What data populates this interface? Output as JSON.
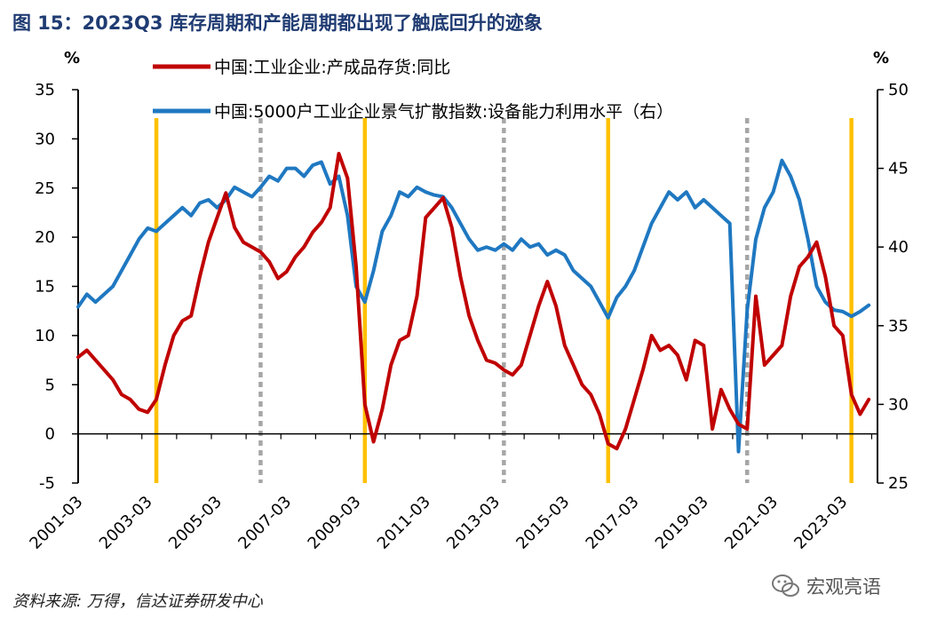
{
  "figure_title": "图 15：2023Q3 库存周期和产能周期都出现了触底回升的迹象",
  "source": "资料来源: 万得，信达证券研发中心",
  "watermark": "宏观亮语",
  "chart_data": {
    "type": "line",
    "left_unit": "%",
    "right_unit": "%",
    "ylim_left": [
      -5,
      35
    ],
    "yticks_left": [
      -5,
      0,
      5,
      10,
      15,
      20,
      25,
      30,
      35
    ],
    "ylim_right": [
      25,
      50
    ],
    "yticks_right": [
      25,
      30,
      35,
      40,
      45,
      50
    ],
    "x_range": [
      "2001-03",
      "2024-03"
    ],
    "x_tick_labels": [
      "2001-03",
      "2003-03",
      "2005-03",
      "2007-03",
      "2009-03",
      "2011-03",
      "2013-03",
      "2015-03",
      "2017-03",
      "2019-03",
      "2021-03",
      "2023-03"
    ],
    "legend_position": "top",
    "colors": {
      "red_series": "#c00000",
      "blue_series": "#1f78c1",
      "orange_marker": "#ffc000",
      "gray_marker": "#a6a6a6"
    },
    "vertical_markers": {
      "orange_solid": [
        "2003-06",
        "2009-06",
        "2016-06",
        "2023-06"
      ],
      "gray_dashed": [
        "2006-06",
        "2013-06",
        "2020-06"
      ]
    },
    "series": [
      {
        "name": "中国:工业企业:产成品存货:同比",
        "axis": "left",
        "points": [
          [
            "2001-03",
            7.8
          ],
          [
            "2001-06",
            8.5
          ],
          [
            "2001-09",
            7.5
          ],
          [
            "2001-12",
            6.5
          ],
          [
            "2002-03",
            5.5
          ],
          [
            "2002-06",
            4.0
          ],
          [
            "2002-09",
            3.5
          ],
          [
            "2002-12",
            2.5
          ],
          [
            "2003-03",
            2.2
          ],
          [
            "2003-06",
            3.5
          ],
          [
            "2003-09",
            7.0
          ],
          [
            "2003-12",
            10.0
          ],
          [
            "2004-03",
            11.5
          ],
          [
            "2004-06",
            12.0
          ],
          [
            "2004-09",
            16.0
          ],
          [
            "2004-12",
            19.5
          ],
          [
            "2005-03",
            22.0
          ],
          [
            "2005-06",
            24.5
          ],
          [
            "2005-09",
            21.0
          ],
          [
            "2005-12",
            19.5
          ],
          [
            "2006-03",
            19.0
          ],
          [
            "2006-06",
            18.5
          ],
          [
            "2006-09",
            17.5
          ],
          [
            "2006-12",
            15.8
          ],
          [
            "2007-03",
            16.5
          ],
          [
            "2007-06",
            18.0
          ],
          [
            "2007-09",
            19.0
          ],
          [
            "2007-12",
            20.5
          ],
          [
            "2008-03",
            21.5
          ],
          [
            "2008-06",
            23.0
          ],
          [
            "2008-09",
            28.5
          ],
          [
            "2008-12",
            26.0
          ],
          [
            "2009-03",
            17.0
          ],
          [
            "2009-06",
            3.0
          ],
          [
            "2009-09",
            -0.8
          ],
          [
            "2009-12",
            2.5
          ],
          [
            "2010-03",
            7.0
          ],
          [
            "2010-06",
            9.5
          ],
          [
            "2010-09",
            10.0
          ],
          [
            "2010-12",
            14.0
          ],
          [
            "2011-03",
            22.0
          ],
          [
            "2011-06",
            23.0
          ],
          [
            "2011-09",
            24.0
          ],
          [
            "2011-12",
            21.0
          ],
          [
            "2012-03",
            16.0
          ],
          [
            "2012-06",
            12.0
          ],
          [
            "2012-09",
            9.5
          ],
          [
            "2012-12",
            7.5
          ],
          [
            "2013-03",
            7.2
          ],
          [
            "2013-06",
            6.5
          ],
          [
            "2013-09",
            6.0
          ],
          [
            "2013-12",
            7.0
          ],
          [
            "2014-03",
            10.0
          ],
          [
            "2014-06",
            13.0
          ],
          [
            "2014-09",
            15.5
          ],
          [
            "2014-12",
            13.0
          ],
          [
            "2015-03",
            9.0
          ],
          [
            "2015-06",
            7.0
          ],
          [
            "2015-09",
            5.0
          ],
          [
            "2015-12",
            4.0
          ],
          [
            "2016-03",
            2.0
          ],
          [
            "2016-06",
            -1.0
          ],
          [
            "2016-09",
            -1.5
          ],
          [
            "2016-12",
            0.5
          ],
          [
            "2017-03",
            3.5
          ],
          [
            "2017-06",
            6.5
          ],
          [
            "2017-09",
            10.0
          ],
          [
            "2017-12",
            8.5
          ],
          [
            "2018-03",
            9.0
          ],
          [
            "2018-06",
            8.0
          ],
          [
            "2018-09",
            5.5
          ],
          [
            "2018-12",
            9.5
          ],
          [
            "2019-03",
            9.0
          ],
          [
            "2019-06",
            0.5
          ],
          [
            "2019-09",
            4.5
          ],
          [
            "2019-12",
            2.5
          ],
          [
            "2020-03",
            1.0
          ],
          [
            "2020-06",
            0.5
          ],
          [
            "2020-09",
            14.0
          ],
          [
            "2020-12",
            7.0
          ],
          [
            "2021-03",
            8.0
          ],
          [
            "2021-06",
            9.0
          ],
          [
            "2021-09",
            14.0
          ],
          [
            "2021-12",
            17.0
          ],
          [
            "2022-03",
            18.0
          ],
          [
            "2022-06",
            19.5
          ],
          [
            "2022-09",
            16.0
          ],
          [
            "2022-12",
            11.0
          ],
          [
            "2023-03",
            10.0
          ],
          [
            "2023-06",
            4.0
          ],
          [
            "2023-09",
            2.0
          ],
          [
            "2023-12",
            3.5
          ]
        ]
      },
      {
        "name": "中国:5000户工业企业景气扩散指数:设备能力利用水平（右）",
        "axis": "right",
        "points": [
          [
            "2001-03",
            36.2
          ],
          [
            "2001-06",
            37.0
          ],
          [
            "2001-09",
            36.5
          ],
          [
            "2001-12",
            37.0
          ],
          [
            "2002-03",
            37.5
          ],
          [
            "2002-06",
            38.5
          ],
          [
            "2002-09",
            39.5
          ],
          [
            "2002-12",
            40.5
          ],
          [
            "2003-03",
            41.2
          ],
          [
            "2003-06",
            41.0
          ],
          [
            "2003-09",
            41.5
          ],
          [
            "2003-12",
            42.0
          ],
          [
            "2004-03",
            42.5
          ],
          [
            "2004-06",
            42.0
          ],
          [
            "2004-09",
            42.8
          ],
          [
            "2004-12",
            43.0
          ],
          [
            "2005-03",
            42.5
          ],
          [
            "2005-06",
            43.0
          ],
          [
            "2005-09",
            43.8
          ],
          [
            "2005-12",
            43.5
          ],
          [
            "2006-03",
            43.2
          ],
          [
            "2006-06",
            43.8
          ],
          [
            "2006-09",
            44.5
          ],
          [
            "2006-12",
            44.2
          ],
          [
            "2007-03",
            45.0
          ],
          [
            "2007-06",
            45.0
          ],
          [
            "2007-09",
            44.5
          ],
          [
            "2007-12",
            45.2
          ],
          [
            "2008-03",
            45.4
          ],
          [
            "2008-06",
            44.0
          ],
          [
            "2008-09",
            44.5
          ],
          [
            "2008-12",
            42.0
          ],
          [
            "2009-03",
            37.5
          ],
          [
            "2009-06",
            36.5
          ],
          [
            "2009-09",
            38.5
          ],
          [
            "2009-12",
            41.0
          ],
          [
            "2010-03",
            42.0
          ],
          [
            "2010-06",
            43.5
          ],
          [
            "2010-09",
            43.2
          ],
          [
            "2010-12",
            43.8
          ],
          [
            "2011-03",
            43.5
          ],
          [
            "2011-06",
            43.3
          ],
          [
            "2011-09",
            43.2
          ],
          [
            "2011-12",
            42.5
          ],
          [
            "2012-03",
            41.5
          ],
          [
            "2012-06",
            40.5
          ],
          [
            "2012-09",
            39.8
          ],
          [
            "2012-12",
            40.0
          ],
          [
            "2013-03",
            39.8
          ],
          [
            "2013-06",
            40.2
          ],
          [
            "2013-09",
            39.8
          ],
          [
            "2013-12",
            40.5
          ],
          [
            "2014-03",
            40.0
          ],
          [
            "2014-06",
            40.2
          ],
          [
            "2014-09",
            39.5
          ],
          [
            "2014-12",
            39.8
          ],
          [
            "2015-03",
            39.5
          ],
          [
            "2015-06",
            38.5
          ],
          [
            "2015-09",
            38.0
          ],
          [
            "2015-12",
            37.5
          ],
          [
            "2016-03",
            36.5
          ],
          [
            "2016-06",
            35.5
          ],
          [
            "2016-09",
            36.8
          ],
          [
            "2016-12",
            37.5
          ],
          [
            "2017-03",
            38.5
          ],
          [
            "2017-06",
            40.0
          ],
          [
            "2017-09",
            41.5
          ],
          [
            "2017-12",
            42.5
          ],
          [
            "2018-03",
            43.5
          ],
          [
            "2018-06",
            43.0
          ],
          [
            "2018-09",
            43.5
          ],
          [
            "2018-12",
            42.5
          ],
          [
            "2019-03",
            43.0
          ],
          [
            "2019-06",
            42.5
          ],
          [
            "2019-09",
            42.0
          ],
          [
            "2019-12",
            41.5
          ],
          [
            "2020-03",
            27.0
          ],
          [
            "2020-06",
            36.0
          ],
          [
            "2020-09",
            40.5
          ],
          [
            "2020-12",
            42.5
          ],
          [
            "2021-03",
            43.5
          ],
          [
            "2021-06",
            45.5
          ],
          [
            "2021-09",
            44.5
          ],
          [
            "2021-12",
            43.0
          ],
          [
            "2022-03",
            40.5
          ],
          [
            "2022-06",
            37.5
          ],
          [
            "2022-09",
            36.5
          ],
          [
            "2022-12",
            36.0
          ],
          [
            "2023-03",
            35.9
          ],
          [
            "2023-06",
            35.6
          ],
          [
            "2023-09",
            35.9
          ],
          [
            "2023-12",
            36.3
          ]
        ]
      }
    ]
  }
}
